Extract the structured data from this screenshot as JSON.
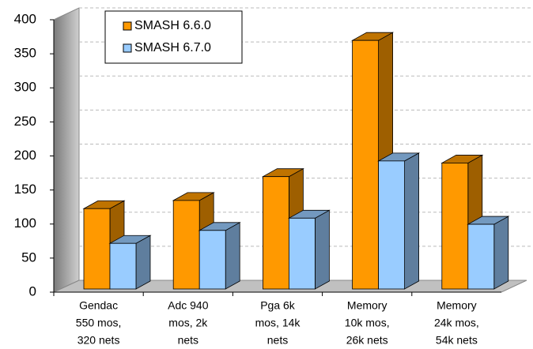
{
  "chart_data": {
    "type": "bar3d",
    "categories": [
      [
        "Gendac",
        "550 mos,",
        "320 nets"
      ],
      [
        "Adc 940",
        "mos, 2k",
        "nets"
      ],
      [
        "Pga 6k",
        "mos, 14k",
        "nets"
      ],
      [
        "Memory",
        "10k mos,",
        "26k nets"
      ],
      [
        "Memory",
        "24k mos,",
        "54k nets"
      ]
    ],
    "series": [
      {
        "name": "SMASH 6.6.0",
        "color": "#ff9900",
        "values": [
          118,
          130,
          165,
          365,
          185
        ]
      },
      {
        "name": "SMASH 6.7.0",
        "color": "#99ccff",
        "values": [
          67,
          86,
          104,
          188,
          95
        ]
      }
    ],
    "ylim": [
      0,
      400
    ],
    "yticks": [
      0,
      50,
      100,
      150,
      200,
      250,
      300,
      350,
      400
    ],
    "grid": true,
    "legend": "top-left"
  }
}
